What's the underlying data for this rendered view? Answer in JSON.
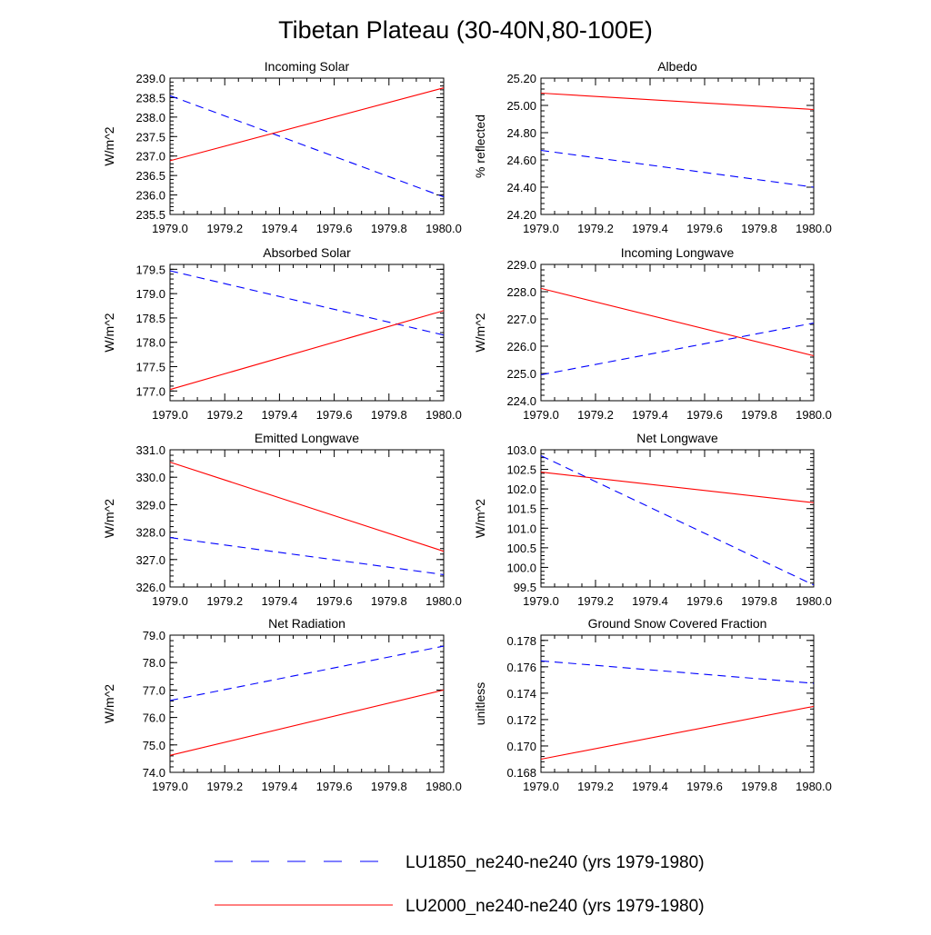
{
  "title": "Tibetan Plateau (30-40N,80-100E)",
  "colors": {
    "series1": "#0000ff",
    "series2": "#ff0000",
    "axis": "#000000"
  },
  "legend": {
    "items": [
      {
        "label": "LU1850_ne240-ne240 (yrs 1979-1980)",
        "color": "#0000ff",
        "dash": true
      },
      {
        "label": "LU2000_ne240-ne240 (yrs 1979-1980)",
        "color": "#ff0000",
        "dash": false
      }
    ]
  },
  "chart_data": [
    {
      "type": "line",
      "title": "Incoming Solar",
      "xlabel": "",
      "ylabel": "W/m^2",
      "xlim": [
        1979.0,
        1980.0
      ],
      "ylim": [
        235.5,
        239.0
      ],
      "xticks": [
        "1979.0",
        "1979.2",
        "1979.4",
        "1979.6",
        "1979.8",
        "1980.0"
      ],
      "yticks": [
        "235.5",
        "236.0",
        "236.5",
        "237.0",
        "237.5",
        "238.0",
        "238.5",
        "239.0"
      ],
      "x": [
        1979.0,
        1980.0
      ],
      "series": [
        {
          "name": "LU1850_ne240-ne240 (yrs 1979-1980)",
          "values": [
            238.55,
            235.95
          ]
        },
        {
          "name": "LU2000_ne240-ne240 (yrs 1979-1980)",
          "values": [
            236.88,
            238.75
          ]
        }
      ]
    },
    {
      "type": "line",
      "title": "Albedo",
      "xlabel": "",
      "ylabel": "% reflected",
      "xlim": [
        1979.0,
        1980.0
      ],
      "ylim": [
        24.2,
        25.2
      ],
      "xticks": [
        "1979.0",
        "1979.2",
        "1979.4",
        "1979.6",
        "1979.8",
        "1980.0"
      ],
      "yticks": [
        "24.20",
        "24.40",
        "24.60",
        "24.80",
        "25.00",
        "25.20"
      ],
      "x": [
        1979.0,
        1980.0
      ],
      "series": [
        {
          "name": "LU1850_ne240-ne240 (yrs 1979-1980)",
          "values": [
            24.67,
            24.4
          ]
        },
        {
          "name": "LU2000_ne240-ne240 (yrs 1979-1980)",
          "values": [
            25.09,
            24.97
          ]
        }
      ]
    },
    {
      "type": "line",
      "title": "Absorbed Solar",
      "xlabel": "",
      "ylabel": "W/m^2",
      "xlim": [
        1979.0,
        1980.0
      ],
      "ylim": [
        176.8,
        179.6
      ],
      "xticks": [
        "1979.0",
        "1979.2",
        "1979.4",
        "1979.6",
        "1979.8",
        "1980.0"
      ],
      "yticks": [
        "177.0",
        "177.5",
        "178.0",
        "178.5",
        "179.0",
        "179.5"
      ],
      "x": [
        1979.0,
        1980.0
      ],
      "series": [
        {
          "name": "LU1850_ne240-ne240 (yrs 1979-1980)",
          "values": [
            179.47,
            178.15
          ]
        },
        {
          "name": "LU2000_ne240-ne240 (yrs 1979-1980)",
          "values": [
            177.03,
            178.65
          ]
        }
      ]
    },
    {
      "type": "line",
      "title": "Incoming Longwave",
      "xlabel": "",
      "ylabel": "W/m^2",
      "xlim": [
        1979.0,
        1980.0
      ],
      "ylim": [
        224.0,
        229.0
      ],
      "xticks": [
        "1979.0",
        "1979.2",
        "1979.4",
        "1979.6",
        "1979.8",
        "1980.0"
      ],
      "yticks": [
        "224.0",
        "225.0",
        "226.0",
        "227.0",
        "228.0",
        "229.0"
      ],
      "x": [
        1979.0,
        1980.0
      ],
      "series": [
        {
          "name": "LU1850_ne240-ne240 (yrs 1979-1980)",
          "values": [
            224.95,
            226.85
          ]
        },
        {
          "name": "LU2000_ne240-ne240 (yrs 1979-1980)",
          "values": [
            228.12,
            225.65
          ]
        }
      ]
    },
    {
      "type": "line",
      "title": "Emitted Longwave",
      "xlabel": "",
      "ylabel": "W/m^2",
      "xlim": [
        1979.0,
        1980.0
      ],
      "ylim": [
        326.0,
        331.0
      ],
      "xticks": [
        "1979.0",
        "1979.2",
        "1979.4",
        "1979.6",
        "1979.8",
        "1980.0"
      ],
      "yticks": [
        "326.0",
        "327.0",
        "328.0",
        "329.0",
        "330.0",
        "331.0"
      ],
      "x": [
        1979.0,
        1980.0
      ],
      "series": [
        {
          "name": "LU1850_ne240-ne240 (yrs 1979-1980)",
          "values": [
            327.8,
            326.45
          ]
        },
        {
          "name": "LU2000_ne240-ne240 (yrs 1979-1980)",
          "values": [
            330.55,
            327.3
          ]
        }
      ]
    },
    {
      "type": "line",
      "title": "Net Longwave",
      "xlabel": "",
      "ylabel": "W/m^2",
      "xlim": [
        1979.0,
        1980.0
      ],
      "ylim": [
        99.5,
        103.0
      ],
      "xticks": [
        "1979.0",
        "1979.2",
        "1979.4",
        "1979.6",
        "1979.8",
        "1980.0"
      ],
      "yticks": [
        "99.5",
        "100.0",
        "100.5",
        "101.0",
        "101.5",
        "102.0",
        "102.5",
        "103.0"
      ],
      "x": [
        1979.0,
        1980.0
      ],
      "series": [
        {
          "name": "LU1850_ne240-ne240 (yrs 1979-1980)",
          "values": [
            102.85,
            99.55
          ]
        },
        {
          "name": "LU2000_ne240-ne240 (yrs 1979-1980)",
          "values": [
            102.43,
            101.65
          ]
        }
      ]
    },
    {
      "type": "line",
      "title": "Net Radiation",
      "xlabel": "",
      "ylabel": "W/m^2",
      "xlim": [
        1979.0,
        1980.0
      ],
      "ylim": [
        74.0,
        79.0
      ],
      "xticks": [
        "1979.0",
        "1979.2",
        "1979.4",
        "1979.6",
        "1979.8",
        "1980.0"
      ],
      "yticks": [
        "74.0",
        "75.0",
        "76.0",
        "77.0",
        "78.0",
        "79.0"
      ],
      "x": [
        1979.0,
        1980.0
      ],
      "series": [
        {
          "name": "LU1850_ne240-ne240 (yrs 1979-1980)",
          "values": [
            76.62,
            78.6
          ]
        },
        {
          "name": "LU2000_ne240-ne240 (yrs 1979-1980)",
          "values": [
            74.62,
            77.0
          ]
        }
      ]
    },
    {
      "type": "line",
      "title": "Ground Snow Covered Fraction",
      "xlabel": "",
      "ylabel": "unitless",
      "xlim": [
        1979.0,
        1980.0
      ],
      "ylim": [
        0.168,
        0.1784
      ],
      "xticks": [
        "1979.0",
        "1979.2",
        "1979.4",
        "1979.6",
        "1979.8",
        "1980.0"
      ],
      "yticks": [
        "0.168",
        "0.170",
        "0.172",
        "0.174",
        "0.176",
        "0.178"
      ],
      "x": [
        1979.0,
        1980.0
      ],
      "series": [
        {
          "name": "LU1850_ne240-ne240 (yrs 1979-1980)",
          "values": [
            0.17645,
            0.17475
          ]
        },
        {
          "name": "LU2000_ne240-ne240 (yrs 1979-1980)",
          "values": [
            0.169,
            0.173
          ]
        }
      ]
    }
  ]
}
